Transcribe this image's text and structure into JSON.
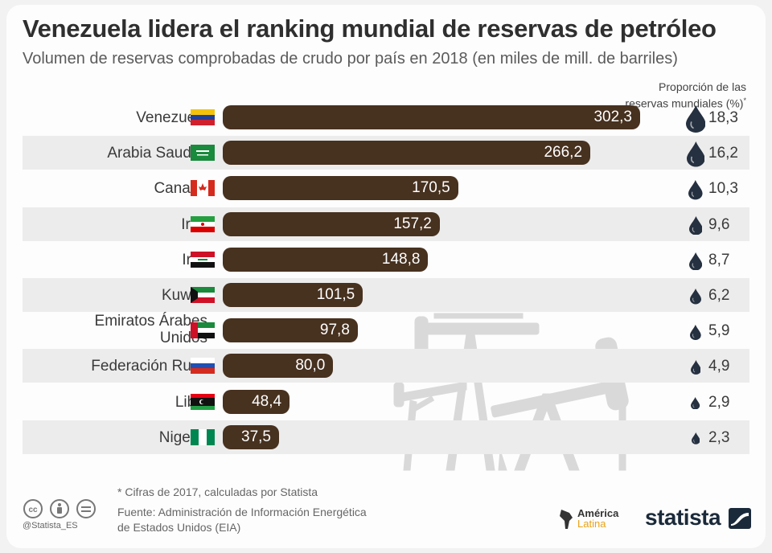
{
  "title": "Venezuela lidera el ranking mundial de reservas de petróleo",
  "subtitle": "Volumen de reservas comprobadas de crudo por país en 2018 (en miles de mill. de barriles)",
  "share_header_line1": "Proporción de las",
  "share_header_line2": "reservas mundiales (%)",
  "share_header_mark": "*",
  "footnote": "* Cifras de 2017, calculadas por Statista",
  "source_line1": "Fuente: Administración de Información Energética",
  "source_line2": "de Estados Unidos (EIA)",
  "cc_handle": "@Statista_ES",
  "partner_logo_line1": "América",
  "partner_logo_line2": "Latina",
  "brand": "statista",
  "icons": [
    "cc-icon",
    "by-icon",
    "nd-icon",
    "oil-drop-icon",
    "pumpjack-icon",
    "statista-logo-icon"
  ],
  "colors": {
    "bar": "#47311f",
    "drop": "#253040",
    "stripe": "#ececec"
  },
  "chart_data": {
    "type": "bar",
    "orientation": "horizontal",
    "title": "Venezuela lidera el ranking mundial de reservas de petróleo",
    "subtitle": "Volumen de reservas comprobadas de crudo por país en 2018 (en miles de mill. de barriles)",
    "categories": [
      "Venezuela",
      "Arabia Saudita",
      "Canadá",
      "Irán",
      "Irak",
      "Kuwait",
      "Emiratos Árabes Unidos",
      "Federación Rusa",
      "Libia",
      "Nigeria"
    ],
    "category_lines": [
      [
        "Venezuela"
      ],
      [
        "Arabia Saudita"
      ],
      [
        "Canadá"
      ],
      [
        "Irán"
      ],
      [
        "Irak"
      ],
      [
        "Kuwait"
      ],
      [
        "Emiratos Árabes",
        "Unidos"
      ],
      [
        "Federación Rusa"
      ],
      [
        "Libia"
      ],
      [
        "Nigeria"
      ]
    ],
    "flags": [
      "venezuela-flag-icon",
      "saudi-arabia-flag-icon",
      "canada-flag-icon",
      "iran-flag-icon",
      "iraq-flag-icon",
      "kuwait-flag-icon",
      "uae-flag-icon",
      "russia-flag-icon",
      "libya-flag-icon",
      "nigeria-flag-icon"
    ],
    "values": [
      302.3,
      266.2,
      170.5,
      157.2,
      148.8,
      101.5,
      97.8,
      80.0,
      48.4,
      37.5
    ],
    "value_labels": [
      "302,3",
      "266,2",
      "170,5",
      "157,2",
      "148,8",
      "101,5",
      "97,8",
      "80,0",
      "48,4",
      "37,5"
    ],
    "share_values": [
      18.3,
      16.2,
      10.3,
      9.6,
      8.7,
      6.2,
      5.9,
      4.9,
      2.9,
      2.3
    ],
    "share_labels": [
      "18,3",
      "16,2",
      "10,3",
      "9,6",
      "8,7",
      "6,2",
      "5,9",
      "4,9",
      "2,9",
      "2,3"
    ],
    "xlim": [
      0,
      302.3
    ],
    "grid": false,
    "legend": "none"
  }
}
